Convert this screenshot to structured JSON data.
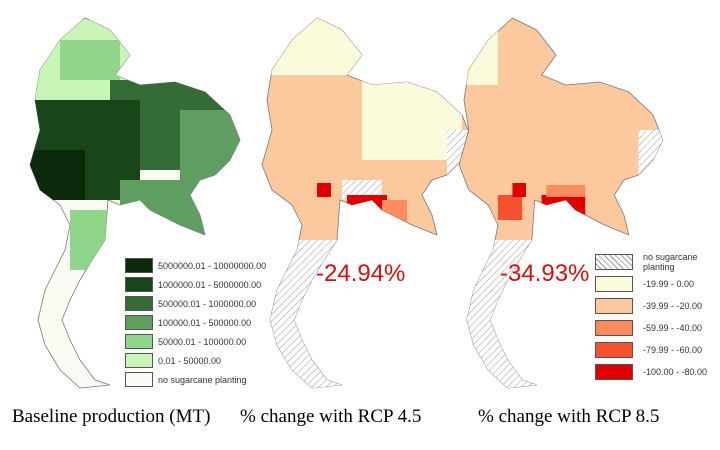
{
  "maps": [
    {
      "caption": "Baseline production (MT)"
    },
    {
      "caption": "% change with RCP 4.5",
      "national_change": "-24.94%"
    },
    {
      "caption": "% change with RCP 8.5",
      "national_change": "-34.93%"
    }
  ],
  "legend_production": {
    "items": [
      {
        "label": "5000000.01 - 10000000.00",
        "color": "#0b2a0b"
      },
      {
        "label": "1000000.01 - 5000000.00",
        "color": "#18461a"
      },
      {
        "label": "500000.01 - 1000000.00",
        "color": "#346b36"
      },
      {
        "label": "100000.01 - 500000.00",
        "color": "#5f9e60"
      },
      {
        "label": "50000.01 - 100000.00",
        "color": "#8fd68a"
      },
      {
        "label": "0.01 - 50000.00",
        "color": "#c9f5b8"
      },
      {
        "label": "no sugarcane planting",
        "color": "#fbfbf3"
      }
    ]
  },
  "legend_change": {
    "items": [
      {
        "label": "no sugarcane planting",
        "color": "hatch"
      },
      {
        "label": "-19.99 - 0.00",
        "color": "#fcfcdc"
      },
      {
        "label": "-39.99 - -20.00",
        "color": "#fcc89e"
      },
      {
        "label": "-59.99 - -40.00",
        "color": "#fc8c5c"
      },
      {
        "label": "-79.99 - -60.00",
        "color": "#f4522e"
      },
      {
        "label": "-100.00 - -80.00",
        "color": "#e00000"
      }
    ]
  }
}
